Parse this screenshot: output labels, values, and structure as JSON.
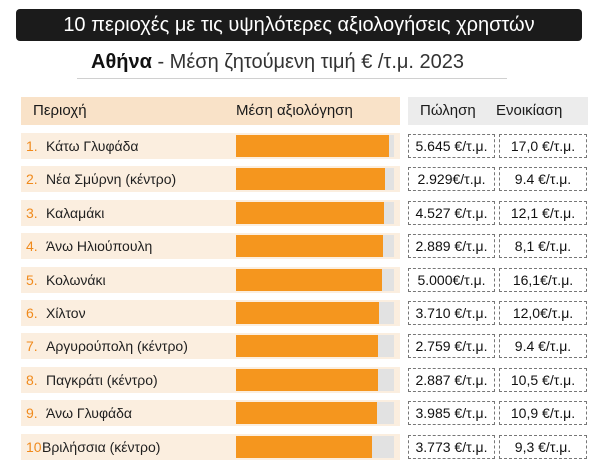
{
  "title": "10 περιοχές με τις υψηλότερες αξιολογήσεις χρηστών",
  "subtitle_city": "Αθήνα",
  "subtitle_rest": " - Μέση ζητούμενη τιμή € /τ.μ. 2023",
  "headers": {
    "area": "Περιοχή",
    "rating": "Μέση αξιολόγηση",
    "sale": "Πώληση",
    "rent": "Ενοικίαση"
  },
  "colors": {
    "bar": "#f5961e",
    "bar_track": "#e2e2e2",
    "row_bg": "#fbeedf",
    "header_bg": "#f9e2c8",
    "rank_number": "#f08a1c"
  },
  "chart_data": {
    "type": "bar",
    "orientation": "horizontal",
    "categories": [
      "Κάτω Γλυφάδα",
      "Νέα Σμύρνη (κέντρο)",
      "Καλαμάκι",
      "Άνω Ηλιούπουλη",
      "Κολωνάκι",
      "Χίλτον",
      "Αργυρούπολη (κέντρο)",
      "Παγκράτι (κέντρο)",
      "Άνω Γλυφάδα",
      "Βριλήσσια (κέντρο)"
    ],
    "values": [
      0.97,
      0.945,
      0.935,
      0.93,
      0.925,
      0.905,
      0.9,
      0.9,
      0.89,
      0.86
    ],
    "ylim": [
      0,
      1
    ],
    "grid": false
  },
  "rows": [
    {
      "rank": "1.",
      "name": "Κάτω Γλυφάδα",
      "sale": "5.645 €/τ.μ.",
      "rent": "17,0 €/τ.μ."
    },
    {
      "rank": "2.",
      "name": "Νέα Σμύρνη (κέντρο)",
      "sale": "2.929€/τ.μ.",
      "rent": "9.4 €/τ.μ."
    },
    {
      "rank": "3.",
      "name": "Καλαμάκι",
      "sale": "4.527 €/τ.μ.",
      "rent": "12,1 €/τ.μ."
    },
    {
      "rank": "4.",
      "name": "Άνω Ηλιούπουλη",
      "sale": "2.889 €/τ.μ.",
      "rent": "8,1 €/τ.μ."
    },
    {
      "rank": "5.",
      "name": "Κολωνάκι",
      "sale": "5.000€/τ.μ.",
      "rent": "16,1€/τ.μ."
    },
    {
      "rank": "6.",
      "name": "Χίλτον",
      "sale": "3.710 €/τ.μ.",
      "rent": "12,0€/τ.μ."
    },
    {
      "rank": "7.",
      "name": "Αργυρούπολη (κέντρο)",
      "sale": "2.759 €/τ.μ.",
      "rent": "9.4 €/τ.μ."
    },
    {
      "rank": "8.",
      "name": "Παγκράτι (κέντρο)",
      "sale": "2.887 €/τ.μ.",
      "rent": "10,5 €/τ.μ."
    },
    {
      "rank": "9.",
      "name": "Άνω Γλυφάδα",
      "sale": "3.985 €/τ.μ.",
      "rent": "10,9 €/τ.μ."
    },
    {
      "rank": "10.",
      "name": "Βριλήσσια (κέντρο)",
      "sale": "3.773 €/τ.μ.",
      "rent": "9,3 €/τ.μ."
    }
  ]
}
